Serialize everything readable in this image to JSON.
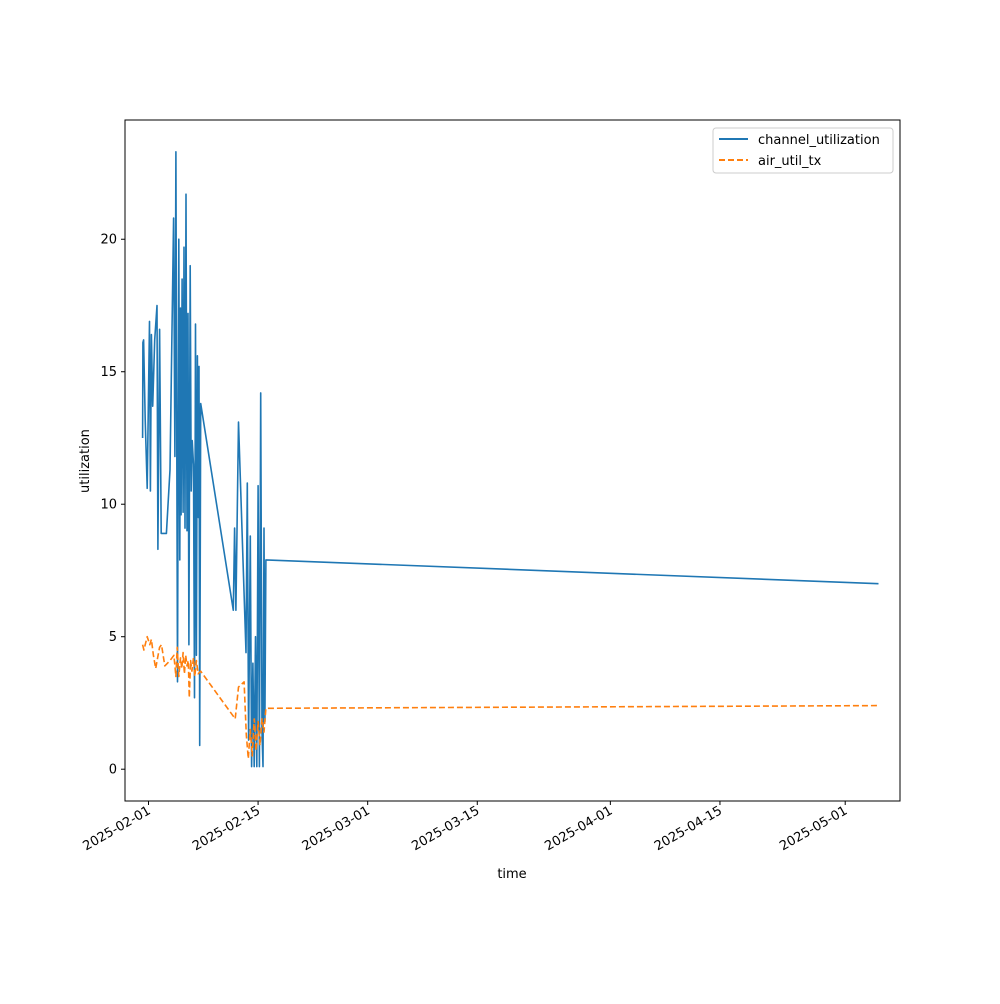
{
  "chart_data": {
    "type": "line",
    "title": "",
    "xlabel": "time",
    "ylabel": "utilization",
    "x_axis_type": "date",
    "xlim": [
      "2025-01-29",
      "2025-05-08"
    ],
    "ylim": [
      -1.2,
      24.5
    ],
    "x_ticks": [
      "2025-02-01",
      "2025-02-15",
      "2025-03-01",
      "2025-03-15",
      "2025-04-01",
      "2025-04-15",
      "2025-05-01"
    ],
    "y_ticks": [
      0,
      5,
      10,
      15,
      20
    ],
    "y_tick_labels": [
      "0",
      "5",
      "10",
      "15",
      "20"
    ],
    "grid": false,
    "legend_position": "top-right",
    "series": [
      {
        "name": "channel_utilization",
        "color": "#1f77b4",
        "line_style": "solid",
        "points": [
          [
            "2025-01-31 06:00",
            12.5
          ],
          [
            "2025-01-31 07:00",
            16.1
          ],
          [
            "2025-01-31 09:00",
            16.2
          ],
          [
            "2025-01-31 14:00",
            13.2
          ],
          [
            "2025-01-31 20:00",
            10.6
          ],
          [
            "2025-02-01 03:00",
            16.9
          ],
          [
            "2025-02-01 06:00",
            10.5
          ],
          [
            "2025-02-01 09:00",
            16.4
          ],
          [
            "2025-02-01 13:00",
            13.7
          ],
          [
            "2025-02-01 19:00",
            16.2
          ],
          [
            "2025-02-02 02:00",
            17.5
          ],
          [
            "2025-02-02 05:00",
            8.3
          ],
          [
            "2025-02-02 10:00",
            16.6
          ],
          [
            "2025-02-02 15:00",
            8.9
          ],
          [
            "2025-02-03 07:00",
            8.9
          ],
          [
            "2025-02-03 18:00",
            11.3
          ],
          [
            "2025-02-04 05:00",
            20.8
          ],
          [
            "2025-02-04 09:00",
            11.8
          ],
          [
            "2025-02-04 12:00",
            23.3
          ],
          [
            "2025-02-04 17:00",
            3.3
          ],
          [
            "2025-02-04 21:00",
            20.0
          ],
          [
            "2025-02-05 00:00",
            7.9
          ],
          [
            "2025-02-05 02:00",
            17.4
          ],
          [
            "2025-02-05 04:00",
            9.6
          ],
          [
            "2025-02-05 07:00",
            18.5
          ],
          [
            "2025-02-05 10:00",
            9.7
          ],
          [
            "2025-02-05 13:00",
            19.7
          ],
          [
            "2025-02-05 16:00",
            9.1
          ],
          [
            "2025-02-05 19:00",
            21.7
          ],
          [
            "2025-02-05 22:00",
            9.0
          ],
          [
            "2025-02-06 01:00",
            17.2
          ],
          [
            "2025-02-06 04:00",
            4.7
          ],
          [
            "2025-02-06 08:00",
            19.0
          ],
          [
            "2025-02-06 11:00",
            10.5
          ],
          [
            "2025-02-06 14:00",
            12.4
          ],
          [
            "2025-02-06 18:00",
            11.5
          ],
          [
            "2025-02-06 21:00",
            2.7
          ],
          [
            "2025-02-07 00:00",
            16.8
          ],
          [
            "2025-02-07 03:00",
            4.3
          ],
          [
            "2025-02-07 06:00",
            15.6
          ],
          [
            "2025-02-07 09:00",
            9.5
          ],
          [
            "2025-02-07 11:00",
            15.2
          ],
          [
            "2025-02-07 13:00",
            0.9
          ],
          [
            "2025-02-07 16:00",
            13.8
          ],
          [
            "2025-02-11 20:00",
            6.0
          ],
          [
            "2025-02-12 00:00",
            9.1
          ],
          [
            "2025-02-12 04:00",
            6.0
          ],
          [
            "2025-02-12 12:00",
            13.1
          ],
          [
            "2025-02-13 11:00",
            4.4
          ],
          [
            "2025-02-13 15:00",
            10.8
          ],
          [
            "2025-02-13 19:00",
            1.1
          ],
          [
            "2025-02-14 00:00",
            8.8
          ],
          [
            "2025-02-14 04:00",
            0.1
          ],
          [
            "2025-02-14 08:00",
            4.0
          ],
          [
            "2025-02-14 12:00",
            0.1
          ],
          [
            "2025-02-14 16:00",
            5.0
          ],
          [
            "2025-02-14 20:00",
            0.1
          ],
          [
            "2025-02-15 00:00",
            10.7
          ],
          [
            "2025-02-15 04:00",
            0.1
          ],
          [
            "2025-02-15 08:00",
            14.2
          ],
          [
            "2025-02-15 12:00",
            1.4
          ],
          [
            "2025-02-15 15:00",
            0.1
          ],
          [
            "2025-02-15 18:00",
            9.1
          ],
          [
            "2025-02-15 21:00",
            1.8
          ],
          [
            "2025-02-16 00:00",
            7.9
          ],
          [
            "2025-05-05 06:00",
            7.0
          ]
        ]
      },
      {
        "name": "air_util_tx",
        "color": "#ff7f0e",
        "line_style": "dashed",
        "points": [
          [
            "2025-01-31 06:00",
            4.7
          ],
          [
            "2025-01-31 10:00",
            4.5
          ],
          [
            "2025-01-31 20:00",
            5.0
          ],
          [
            "2025-02-01 04:00",
            4.7
          ],
          [
            "2025-02-01 09:00",
            4.9
          ],
          [
            "2025-02-01 15:00",
            4.3
          ],
          [
            "2025-02-01 22:00",
            3.8
          ],
          [
            "2025-02-02 04:00",
            4.2
          ],
          [
            "2025-02-02 10:00",
            4.6
          ],
          [
            "2025-02-02 16:00",
            4.7
          ],
          [
            "2025-02-03 02:00",
            3.9
          ],
          [
            "2025-02-03 18:00",
            4.1
          ],
          [
            "2025-02-04 06:00",
            4.3
          ],
          [
            "2025-02-04 12:00",
            3.5
          ],
          [
            "2025-02-04 16:00",
            4.6
          ],
          [
            "2025-02-04 21:00",
            3.5
          ],
          [
            "2025-02-05 02:00",
            4.2
          ],
          [
            "2025-02-05 06:00",
            3.8
          ],
          [
            "2025-02-05 10:00",
            4.4
          ],
          [
            "2025-02-05 14:00",
            3.6
          ],
          [
            "2025-02-05 18:00",
            4.3
          ],
          [
            "2025-02-05 22:00",
            3.9
          ],
          [
            "2025-02-06 02:00",
            4.1
          ],
          [
            "2025-02-06 05:00",
            2.7
          ],
          [
            "2025-02-06 09:00",
            4.1
          ],
          [
            "2025-02-06 13:00",
            3.7
          ],
          [
            "2025-02-06 18:00",
            4.2
          ],
          [
            "2025-02-06 22:00",
            3.5
          ],
          [
            "2025-02-07 03:00",
            4.1
          ],
          [
            "2025-02-07 08:00",
            3.6
          ],
          [
            "2025-02-07 16:00",
            3.7
          ],
          [
            "2025-02-11 20:00",
            2.0
          ],
          [
            "2025-02-12 02:00",
            1.9
          ],
          [
            "2025-02-12 12:00",
            3.1
          ],
          [
            "2025-02-13 05:00",
            3.3
          ],
          [
            "2025-02-13 12:00",
            1.3
          ],
          [
            "2025-02-13 18:00",
            0.4
          ],
          [
            "2025-02-14 00:00",
            1.5
          ],
          [
            "2025-02-14 06:00",
            0.5
          ],
          [
            "2025-02-14 12:00",
            1.9
          ],
          [
            "2025-02-14 18:00",
            0.7
          ],
          [
            "2025-02-15 00:00",
            1.8
          ],
          [
            "2025-02-15 06:00",
            0.9
          ],
          [
            "2025-02-15 12:00",
            1.9
          ],
          [
            "2025-02-15 18:00",
            1.4
          ],
          [
            "2025-02-16 00:00",
            2.3
          ],
          [
            "2025-05-05 06:00",
            2.4
          ]
        ]
      }
    ]
  }
}
